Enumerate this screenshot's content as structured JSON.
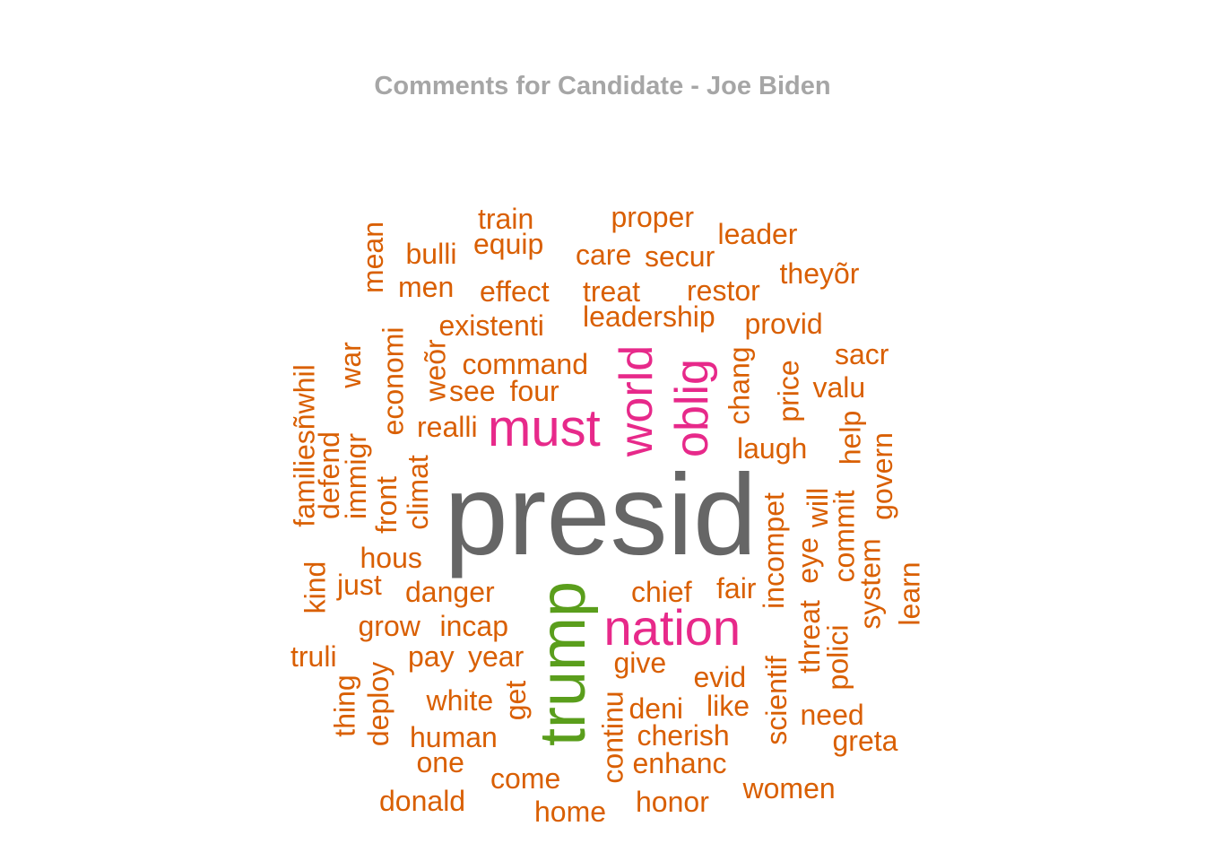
{
  "title": "Comments for Candidate - Joe Biden",
  "colors": {
    "title": "#a6a6a6",
    "top": "#666666",
    "green": "#5a9e1c",
    "pink": "#e7298a",
    "orange": "#d95f02"
  },
  "words": [
    {
      "text": "presid",
      "color": "top"
    },
    {
      "text": "trump",
      "color": "green"
    },
    {
      "text": "must",
      "color": "pink"
    },
    {
      "text": "world",
      "color": "pink"
    },
    {
      "text": "oblig",
      "color": "pink"
    },
    {
      "text": "nation",
      "color": "pink"
    },
    {
      "text": "train",
      "color": "orange"
    },
    {
      "text": "proper",
      "color": "orange"
    },
    {
      "text": "leader",
      "color": "orange"
    },
    {
      "text": "bulli",
      "color": "orange"
    },
    {
      "text": "equip",
      "color": "orange"
    },
    {
      "text": "care",
      "color": "orange"
    },
    {
      "text": "secur",
      "color": "orange"
    },
    {
      "text": "theyõr",
      "color": "orange"
    },
    {
      "text": "mean",
      "color": "orange"
    },
    {
      "text": "men",
      "color": "orange"
    },
    {
      "text": "effect",
      "color": "orange"
    },
    {
      "text": "treat",
      "color": "orange"
    },
    {
      "text": "restor",
      "color": "orange"
    },
    {
      "text": "leadership",
      "color": "orange"
    },
    {
      "text": "provid",
      "color": "orange"
    },
    {
      "text": "existenti",
      "color": "orange"
    },
    {
      "text": "economi",
      "color": "orange"
    },
    {
      "text": "weõr",
      "color": "orange"
    },
    {
      "text": "command",
      "color": "orange"
    },
    {
      "text": "chang",
      "color": "orange"
    },
    {
      "text": "sacr",
      "color": "orange"
    },
    {
      "text": "war",
      "color": "orange"
    },
    {
      "text": "familiesñwhil",
      "color": "orange"
    },
    {
      "text": "see",
      "color": "orange"
    },
    {
      "text": "four",
      "color": "orange"
    },
    {
      "text": "price",
      "color": "orange"
    },
    {
      "text": "valu",
      "color": "orange"
    },
    {
      "text": "realli",
      "color": "orange"
    },
    {
      "text": "immigr",
      "color": "orange"
    },
    {
      "text": "defend",
      "color": "orange"
    },
    {
      "text": "laugh",
      "color": "orange"
    },
    {
      "text": "help",
      "color": "orange"
    },
    {
      "text": "climat",
      "color": "orange"
    },
    {
      "text": "front",
      "color": "orange"
    },
    {
      "text": "govern",
      "color": "orange"
    },
    {
      "text": "incompet",
      "color": "orange"
    },
    {
      "text": "will",
      "color": "orange"
    },
    {
      "text": "commit",
      "color": "orange"
    },
    {
      "text": "hous",
      "color": "orange"
    },
    {
      "text": "eye",
      "color": "orange"
    },
    {
      "text": "system",
      "color": "orange"
    },
    {
      "text": "kind",
      "color": "orange"
    },
    {
      "text": "just",
      "color": "orange"
    },
    {
      "text": "danger",
      "color": "orange"
    },
    {
      "text": "chief",
      "color": "orange"
    },
    {
      "text": "fair",
      "color": "orange"
    },
    {
      "text": "learn",
      "color": "orange"
    },
    {
      "text": "grow",
      "color": "orange"
    },
    {
      "text": "incap",
      "color": "orange"
    },
    {
      "text": "threat",
      "color": "orange"
    },
    {
      "text": "truli",
      "color": "orange"
    },
    {
      "text": "pay",
      "color": "orange"
    },
    {
      "text": "year",
      "color": "orange"
    },
    {
      "text": "polici",
      "color": "orange"
    },
    {
      "text": "give",
      "color": "orange"
    },
    {
      "text": "scientif",
      "color": "orange"
    },
    {
      "text": "evid",
      "color": "orange"
    },
    {
      "text": "thing",
      "color": "orange"
    },
    {
      "text": "deploy",
      "color": "orange"
    },
    {
      "text": "white",
      "color": "orange"
    },
    {
      "text": "get",
      "color": "orange"
    },
    {
      "text": "like",
      "color": "orange"
    },
    {
      "text": "deni",
      "color": "orange"
    },
    {
      "text": "need",
      "color": "orange"
    },
    {
      "text": "human",
      "color": "orange"
    },
    {
      "text": "continu",
      "color": "orange"
    },
    {
      "text": "cherish",
      "color": "orange"
    },
    {
      "text": "greta",
      "color": "orange"
    },
    {
      "text": "one",
      "color": "orange"
    },
    {
      "text": "enhanc",
      "color": "orange"
    },
    {
      "text": "come",
      "color": "orange"
    },
    {
      "text": "women",
      "color": "orange"
    },
    {
      "text": "donald",
      "color": "orange"
    },
    {
      "text": "honor",
      "color": "orange"
    },
    {
      "text": "home",
      "color": "orange"
    }
  ]
}
